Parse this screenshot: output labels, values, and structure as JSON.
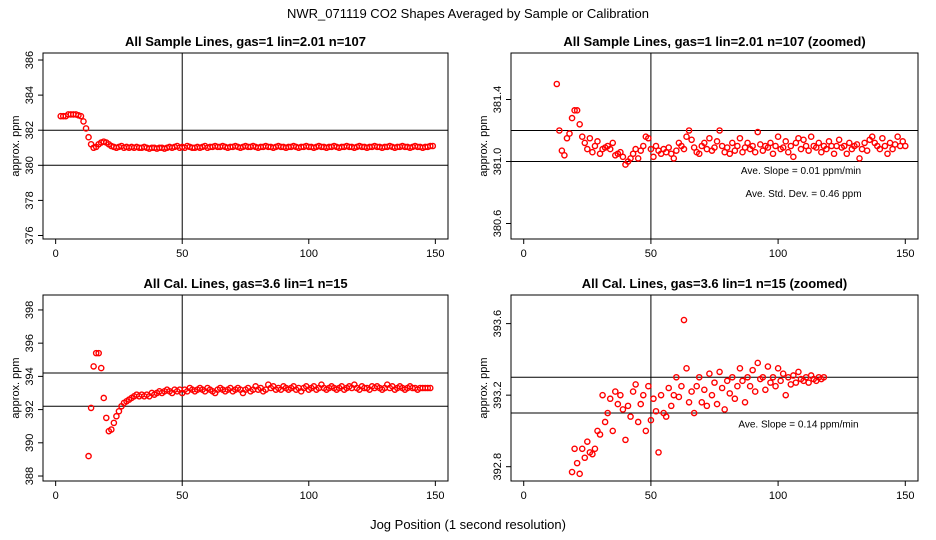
{
  "figure": {
    "title": "NWR_071119  CO2 Shapes Averaged by Sample or Calibration",
    "xlabel": "Jog Position (1 second resolution)"
  },
  "chart_data": [
    {
      "type": "scatter",
      "title": "All Sample Lines, gas=1 lin=2.01 n=107",
      "xlabel": "",
      "ylabel": "approx. ppm",
      "xlim": [
        -5,
        155
      ],
      "ylim": [
        375.8,
        386.4
      ],
      "xticks": [
        "0",
        "50",
        "100",
        "150"
      ],
      "xtick_values": [
        0,
        50,
        100,
        150
      ],
      "yticks": [
        "376",
        "378",
        "380",
        "382",
        "384",
        "386"
      ],
      "ytick_values": [
        376,
        378,
        380,
        382,
        384,
        386
      ],
      "vline": 50,
      "hlines": [
        382.0,
        380.0
      ],
      "marker_color": "#ff0000",
      "x_start": 2,
      "values": [
        382.8,
        382.8,
        382.8,
        382.9,
        382.9,
        382.9,
        382.9,
        382.85,
        382.8,
        382.5,
        382.1,
        381.6,
        381.2,
        381.0,
        381.05,
        381.2,
        381.3,
        381.35,
        381.3,
        381.2,
        381.1,
        381.05,
        381.0,
        381.05,
        381.1,
        381.0,
        381.05,
        381.0,
        381.05,
        381.0,
        381.05,
        381.0,
        381.0,
        381.05,
        381.0,
        380.95,
        381.0,
        381.0,
        380.95,
        381.0,
        381.0,
        380.95,
        381.0,
        381.05,
        381.0,
        381.05,
        381.1,
        381.0,
        381.05,
        381.0,
        381.1,
        381.05,
        381.0,
        381.0,
        381.05,
        381.0,
        381.05,
        381.1,
        381.0,
        381.05,
        381.05,
        381.1,
        381.05,
        381.05,
        381.1,
        381.05,
        381.0,
        381.05,
        381.05,
        381.1,
        381.05,
        381.0,
        381.05,
        381.1,
        381.05,
        381.05,
        381.1,
        381.05,
        381.0,
        381.05,
        381.05,
        381.1,
        381.05,
        381.05,
        381.0,
        381.05,
        381.1,
        381.05,
        381.05,
        381.0,
        381.05,
        381.05,
        381.1,
        381.05,
        381.0,
        381.05,
        381.05,
        381.1,
        381.05,
        381.05,
        381.0,
        381.05,
        381.1,
        381.05,
        381.05,
        381.0,
        381.05,
        381.05,
        381.1,
        381.05,
        381.0,
        381.05,
        381.05,
        381.1,
        381.05,
        381.05,
        381.0,
        381.05,
        381.1,
        381.05,
        381.05,
        381.0,
        381.05,
        381.05,
        381.1,
        381.05,
        381.05,
        381.0,
        381.05,
        381.05,
        381.1,
        381.05,
        381.0,
        381.05,
        381.05,
        381.1,
        381.05,
        381.05,
        381.0,
        381.05,
        381.1,
        381.05,
        381.05,
        381.0,
        381.05,
        381.05,
        381.1,
        381.1
      ],
      "annotations": []
    },
    {
      "type": "scatter",
      "title": "All Sample Lines, gas=1 lin=2.01 n=107 (zoomed)",
      "xlabel": "",
      "ylabel": "approx. ppm",
      "xlim": [
        -5,
        155
      ],
      "ylim": [
        380.5,
        381.7
      ],
      "xticks": [
        "0",
        "50",
        "100",
        "150"
      ],
      "xtick_values": [
        0,
        50,
        100,
        150
      ],
      "yticks": [
        "380.6",
        "381.0",
        "381.4"
      ],
      "ytick_values": [
        380.6,
        381.0,
        381.4
      ],
      "vline": 50,
      "hlines": [
        381.2,
        381.0
      ],
      "marker_color": "#ff0000",
      "x_start": 13,
      "values": [
        381.5,
        381.2,
        381.07,
        381.04,
        381.15,
        381.18,
        381.28,
        381.33,
        381.33,
        381.24,
        381.16,
        381.12,
        381.08,
        381.15,
        381.06,
        381.1,
        381.13,
        381.05,
        381.08,
        381.09,
        381.1,
        381.08,
        381.12,
        381.04,
        381.05,
        381.06,
        381.03,
        380.98,
        381.0,
        381.02,
        381.05,
        381.08,
        381.02,
        381.07,
        381.1,
        381.16,
        381.15,
        381.08,
        381.03,
        381.1,
        381.07,
        381.05,
        381.08,
        381.06,
        381.09,
        381.05,
        381.02,
        381.07,
        381.12,
        381.1,
        381.08,
        381.16,
        381.2,
        381.14,
        381.09,
        381.06,
        381.05,
        381.1,
        381.12,
        381.08,
        381.15,
        381.07,
        381.09,
        381.13,
        381.2,
        381.1,
        381.06,
        381.09,
        381.05,
        381.12,
        381.07,
        381.1,
        381.15,
        381.06,
        381.09,
        381.12,
        381.08,
        381.1,
        381.06,
        381.19,
        381.11,
        381.07,
        381.1,
        381.09,
        381.12,
        381.05,
        381.1,
        381.16,
        381.08,
        381.09,
        381.13,
        381.06,
        381.1,
        381.03,
        381.12,
        381.15,
        381.08,
        381.14,
        381.1,
        381.07,
        381.16,
        381.1,
        381.09,
        381.12,
        381.06,
        381.1,
        381.08,
        381.13,
        381.1,
        381.05,
        381.1,
        381.14,
        381.09,
        381.1,
        381.05,
        381.12,
        381.08,
        381.1,
        381.11,
        381.02,
        381.08,
        381.12,
        381.07,
        381.14,
        381.16,
        381.12,
        381.1,
        381.08,
        381.15,
        381.1,
        381.05,
        381.12,
        381.08,
        381.11,
        381.16,
        381.1,
        381.13,
        381.1
      ],
      "annotations": [
        {
          "text": "Ave. Slope =  0.01  ppm/min",
          "x": 109,
          "y": 380.92
        },
        {
          "text": "Ave. Std. Dev. =  0.46  ppm",
          "x": 110,
          "y": 380.77
        }
      ]
    },
    {
      "type": "scatter",
      "title": "All Cal. Lines, gas=3.6 lin=1 n=15",
      "xlabel": "",
      "ylabel": "approx. ppm",
      "xlim": [
        -5,
        155
      ],
      "ylim": [
        387.7,
        398.9
      ],
      "xticks": [
        "0",
        "50",
        "100",
        "150"
      ],
      "xtick_values": [
        0,
        50,
        100,
        150
      ],
      "yticks": [
        "388",
        "390",
        "392",
        "394",
        "396",
        "398"
      ],
      "ytick_values": [
        388,
        390,
        392,
        394,
        396,
        398
      ],
      "vline": 50,
      "hlines": [
        394.2,
        392.2
      ],
      "marker_color": "#ff0000",
      "x_start": 13,
      "values": [
        389.2,
        392.1,
        394.6,
        395.4,
        395.4,
        394.5,
        392.7,
        391.5,
        390.7,
        390.8,
        391.2,
        391.6,
        391.9,
        392.2,
        392.4,
        392.5,
        392.6,
        392.7,
        392.8,
        392.9,
        392.8,
        392.9,
        392.8,
        392.9,
        392.8,
        393.0,
        392.9,
        393.0,
        393.1,
        393.0,
        393.1,
        393.2,
        393.1,
        393.0,
        393.2,
        393.1,
        393.2,
        393.0,
        393.2,
        393.1,
        393.3,
        393.2,
        393.1,
        393.2,
        393.3,
        393.2,
        393.1,
        393.3,
        393.2,
        393.1,
        393.0,
        393.2,
        393.3,
        393.2,
        393.1,
        393.2,
        393.3,
        393.1,
        393.2,
        393.3,
        393.2,
        393.0,
        393.2,
        393.3,
        393.1,
        393.2,
        393.4,
        393.2,
        393.3,
        393.1,
        393.2,
        393.5,
        393.3,
        393.4,
        393.2,
        393.3,
        393.2,
        393.4,
        393.3,
        393.2,
        393.3,
        393.4,
        393.2,
        393.3,
        393.1,
        393.3,
        393.4,
        393.2,
        393.3,
        393.4,
        393.2,
        393.3,
        393.5,
        393.3,
        393.2,
        393.3,
        393.4,
        393.3,
        393.2,
        393.3,
        393.4,
        393.2,
        393.3,
        393.4,
        393.3,
        393.5,
        393.3,
        393.2,
        393.4,
        393.3,
        393.3,
        393.2,
        393.4,
        393.3,
        393.4,
        393.3,
        393.2,
        393.3,
        393.5,
        393.3,
        393.4,
        393.2,
        393.3,
        393.4,
        393.3,
        393.2,
        393.3,
        393.4,
        393.3,
        393.3,
        393.2,
        393.3,
        393.3,
        393.3,
        393.3,
        393.3
      ],
      "annotations": []
    },
    {
      "type": "scatter",
      "title": "All Cal. Lines, gas=3.6 lin=1 n=15 (zoomed)",
      "xlabel": "",
      "ylabel": "approx. ppm",
      "xlim": [
        -5,
        155
      ],
      "ylim": [
        392.72,
        393.76
      ],
      "xticks": [
        "0",
        "50",
        "100",
        "150"
      ],
      "xtick_values": [
        0,
        50,
        100,
        150
      ],
      "yticks": [
        "392.8",
        "393.2",
        "393.6"
      ],
      "ytick_values": [
        392.8,
        393.2,
        393.6
      ],
      "vline": 50,
      "hlines": [
        393.3,
        393.1
      ],
      "marker_color": "#ff0000",
      "x_start": 19,
      "values": [
        392.77,
        392.9,
        392.82,
        392.76,
        392.9,
        392.85,
        392.94,
        392.88,
        392.87,
        392.9,
        393.0,
        392.98,
        393.2,
        393.05,
        393.1,
        393.18,
        393.0,
        393.22,
        393.15,
        393.2,
        393.12,
        392.95,
        393.14,
        393.08,
        393.22,
        393.26,
        393.05,
        393.15,
        393.2,
        393.0,
        393.25,
        393.06,
        393.18,
        393.11,
        392.88,
        393.2,
        393.1,
        393.08,
        393.24,
        393.14,
        393.2,
        393.3,
        393.19,
        393.25,
        393.62,
        393.35,
        393.16,
        393.22,
        393.1,
        393.25,
        393.3,
        393.16,
        393.23,
        393.14,
        393.32,
        393.2,
        393.27,
        393.15,
        393.33,
        393.24,
        393.12,
        393.28,
        393.21,
        393.3,
        393.18,
        393.25,
        393.35,
        393.28,
        393.16,
        393.3,
        393.25,
        393.34,
        393.22,
        393.38,
        393.29,
        393.3,
        393.23,
        393.36,
        393.27,
        393.3,
        393.25,
        393.35,
        393.28,
        393.32,
        393.2,
        393.3,
        393.26,
        393.31,
        393.27,
        393.33,
        393.29,
        393.28,
        393.3,
        393.27,
        393.31,
        393.29,
        393.28,
        393.3,
        393.29,
        393.3
      ],
      "annotations": [
        {
          "text": "Ave. Slope =  0.14  ppm/min",
          "x": 108,
          "y": 393.02
        }
      ]
    }
  ]
}
